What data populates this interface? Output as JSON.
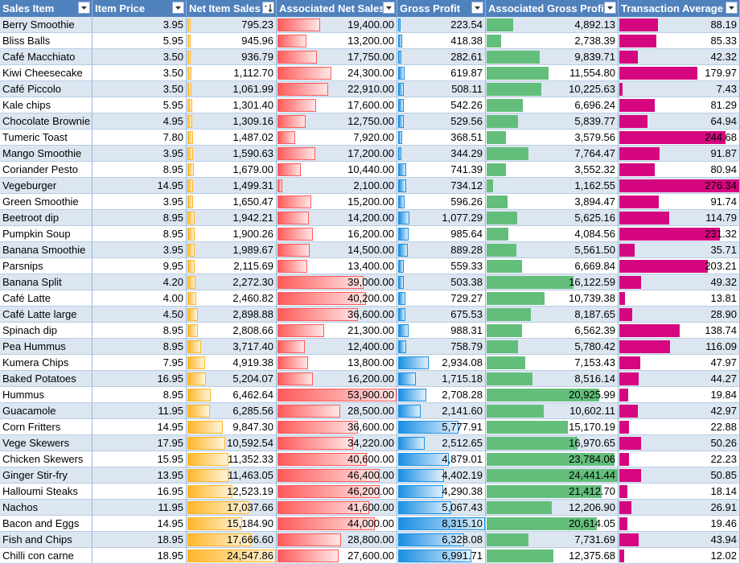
{
  "headers": [
    {
      "label": "Sales Item",
      "filter": "filter-dropdown-icon"
    },
    {
      "label": "Item Price",
      "filter": "filter-dropdown-icon"
    },
    {
      "label": "Net Item Sales",
      "filter": "filter-sorted-icon"
    },
    {
      "label": "Associated Net Sales",
      "filter": "filter-dropdown-icon"
    },
    {
      "label": "Gross Profit",
      "filter": "filter-dropdown-icon"
    },
    {
      "label": "Associated Gross Profit",
      "filter": "filter-dropdown-icon"
    },
    {
      "label": "Transaction Average",
      "filter": "filter-dropdown-icon"
    }
  ],
  "bar_colors": {
    "net_item_sales": "#ffb628",
    "associated_net_sales": "#ff5a5a",
    "gross_profit": "#1a8fe3",
    "associated_gross_profit": "#63be7b",
    "transaction_average": "#d5067f"
  },
  "rows": [
    {
      "item": "Berry Smoothie",
      "price": "3.95",
      "net": "795.23",
      "assoc_net": "19,400.00",
      "gross": "223.54",
      "assoc_gross": "4,892.13",
      "avg": "88.19"
    },
    {
      "item": "Bliss Balls",
      "price": "5.95",
      "net": "945.96",
      "assoc_net": "13,200.00",
      "gross": "418.38",
      "assoc_gross": "2,738.39",
      "avg": "85.33"
    },
    {
      "item": "Café Macchiato",
      "price": "3.50",
      "net": "936.79",
      "assoc_net": "17,750.00",
      "gross": "282.61",
      "assoc_gross": "9,839.71",
      "avg": "42.32"
    },
    {
      "item": "Kiwi Cheesecake",
      "price": "3.50",
      "net": "1,112.70",
      "assoc_net": "24,300.00",
      "gross": "619.87",
      "assoc_gross": "11,554.80",
      "avg": "179.97"
    },
    {
      "item": "Café Piccolo",
      "price": "3.50",
      "net": "1,061.99",
      "assoc_net": "22,910.00",
      "gross": "508.11",
      "assoc_gross": "10,225.63",
      "avg": "7.43"
    },
    {
      "item": "Kale chips",
      "price": "5.95",
      "net": "1,301.40",
      "assoc_net": "17,600.00",
      "gross": "542.26",
      "assoc_gross": "6,696.24",
      "avg": "81.29"
    },
    {
      "item": "Chocolate Brownie",
      "price": "4.95",
      "net": "1,309.16",
      "assoc_net": "12,750.00",
      "gross": "529.56",
      "assoc_gross": "5,839.77",
      "avg": "64.94"
    },
    {
      "item": "Tumeric Toast",
      "price": "7.80",
      "net": "1,487.02",
      "assoc_net": "7,920.00",
      "gross": "368.51",
      "assoc_gross": "3,579.56",
      "avg": "244.68"
    },
    {
      "item": "Mango Smoothie",
      "price": "3.95",
      "net": "1,590.63",
      "assoc_net": "17,200.00",
      "gross": "344.29",
      "assoc_gross": "7,764.47",
      "avg": "91.87"
    },
    {
      "item": "Coriander Pesto",
      "price": "8.95",
      "net": "1,679.00",
      "assoc_net": "10,440.00",
      "gross": "741.39",
      "assoc_gross": "3,552.32",
      "avg": "80.94"
    },
    {
      "item": "Vegeburger",
      "price": "14.95",
      "net": "1,499.31",
      "assoc_net": "2,100.00",
      "gross": "734.12",
      "assoc_gross": "1,162.55",
      "avg": "276.34"
    },
    {
      "item": "Green Smoothie",
      "price": "3.95",
      "net": "1,650.47",
      "assoc_net": "15,200.00",
      "gross": "596.26",
      "assoc_gross": "3,894.47",
      "avg": "91.74"
    },
    {
      "item": "Beetroot dip",
      "price": "8.95",
      "net": "1,942.21",
      "assoc_net": "14,200.00",
      "gross": "1,077.29",
      "assoc_gross": "5,625.16",
      "avg": "114.79"
    },
    {
      "item": "Pumpkin Soup",
      "price": "8.95",
      "net": "1,900.26",
      "assoc_net": "16,200.00",
      "gross": "985.64",
      "assoc_gross": "4,084.56",
      "avg": "231.32"
    },
    {
      "item": "Banana Smoothie",
      "price": "3.95",
      "net": "1,989.67",
      "assoc_net": "14,500.00",
      "gross": "889.28",
      "assoc_gross": "5,561.50",
      "avg": "35.71"
    },
    {
      "item": "Parsnips",
      "price": "9.95",
      "net": "2,115.69",
      "assoc_net": "13,400.00",
      "gross": "559.33",
      "assoc_gross": "6,669.84",
      "avg": "203.21"
    },
    {
      "item": "Banana Split",
      "price": "4.20",
      "net": "2,272.30",
      "assoc_net": "39,000.00",
      "gross": "503.38",
      "assoc_gross": "16,122.59",
      "avg": "49.32"
    },
    {
      "item": "Café Latte",
      "price": "4.00",
      "net": "2,460.82",
      "assoc_net": "40,200.00",
      "gross": "729.27",
      "assoc_gross": "10,739.38",
      "avg": "13.81"
    },
    {
      "item": "Café Latte large",
      "price": "4.50",
      "net": "2,898.88",
      "assoc_net": "36,600.00",
      "gross": "675.53",
      "assoc_gross": "8,187.65",
      "avg": "28.90"
    },
    {
      "item": "Spinach dip",
      "price": "8.95",
      "net": "2,808.66",
      "assoc_net": "21,300.00",
      "gross": "988.31",
      "assoc_gross": "6,562.39",
      "avg": "138.74"
    },
    {
      "item": "Pea Hummus",
      "price": "8.95",
      "net": "3,717.40",
      "assoc_net": "12,400.00",
      "gross": "758.79",
      "assoc_gross": "5,780.42",
      "avg": "116.09"
    },
    {
      "item": "Kumera Chips",
      "price": "7.95",
      "net": "4,919.38",
      "assoc_net": "13,800.00",
      "gross": "2,934.08",
      "assoc_gross": "7,153.43",
      "avg": "47.97"
    },
    {
      "item": "Baked Potatoes",
      "price": "16.95",
      "net": "5,204.07",
      "assoc_net": "16,200.00",
      "gross": "1,715.18",
      "assoc_gross": "8,516.14",
      "avg": "44.27"
    },
    {
      "item": "Hummus",
      "price": "8.95",
      "net": "6,462.64",
      "assoc_net": "53,900.00",
      "gross": "2,708.28",
      "assoc_gross": "20,925.99",
      "avg": "19.84"
    },
    {
      "item": "Guacamole",
      "price": "11.95",
      "net": "6,285.56",
      "assoc_net": "28,500.00",
      "gross": "2,141.60",
      "assoc_gross": "10,602.11",
      "avg": "42.97"
    },
    {
      "item": "Corn Fritters",
      "price": "14.95",
      "net": "9,847.30",
      "assoc_net": "36,600.00",
      "gross": "5,777.91",
      "assoc_gross": "15,170.19",
      "avg": "22.88"
    },
    {
      "item": "Vege Skewers",
      "price": "17.95",
      "net": "10,592.54",
      "assoc_net": "34,220.00",
      "gross": "2,512.65",
      "assoc_gross": "16,970.65",
      "avg": "50.26"
    },
    {
      "item": "Chicken Skewers",
      "price": "15.95",
      "net": "11,352.33",
      "assoc_net": "40,600.00",
      "gross": "4,879.01",
      "assoc_gross": "23,784.06",
      "avg": "22.23"
    },
    {
      "item": "Ginger Stir-fry",
      "price": "13.95",
      "net": "11,463.05",
      "assoc_net": "46,400.00",
      "gross": "4,402.19",
      "assoc_gross": "24,441.44",
      "avg": "50.85"
    },
    {
      "item": "Halloumi Steaks",
      "price": "16.95",
      "net": "12,523.19",
      "assoc_net": "46,200.00",
      "gross": "4,290.38",
      "assoc_gross": "21,412.70",
      "avg": "18.14"
    },
    {
      "item": "Nachos",
      "price": "11.95",
      "net": "17,037.66",
      "assoc_net": "41,600.00",
      "gross": "5,067.43",
      "assoc_gross": "12,206.90",
      "avg": "26.91"
    },
    {
      "item": "Bacon and Eggs",
      "price": "14.95",
      "net": "15,184.90",
      "assoc_net": "44,000.00",
      "gross": "8,315.10",
      "assoc_gross": "20,614.05",
      "avg": "19.46"
    },
    {
      "item": "Fish and Chips",
      "price": "18.95",
      "net": "17,666.60",
      "assoc_net": "28,800.00",
      "gross": "6,328.08",
      "assoc_gross": "7,731.69",
      "avg": "43.94"
    },
    {
      "item": "Chilli con carne",
      "price": "18.95",
      "net": "24,547.86",
      "assoc_net": "27,600.00",
      "gross": "6,991.71",
      "assoc_gross": "12,375.68",
      "avg": "12.02"
    }
  ]
}
